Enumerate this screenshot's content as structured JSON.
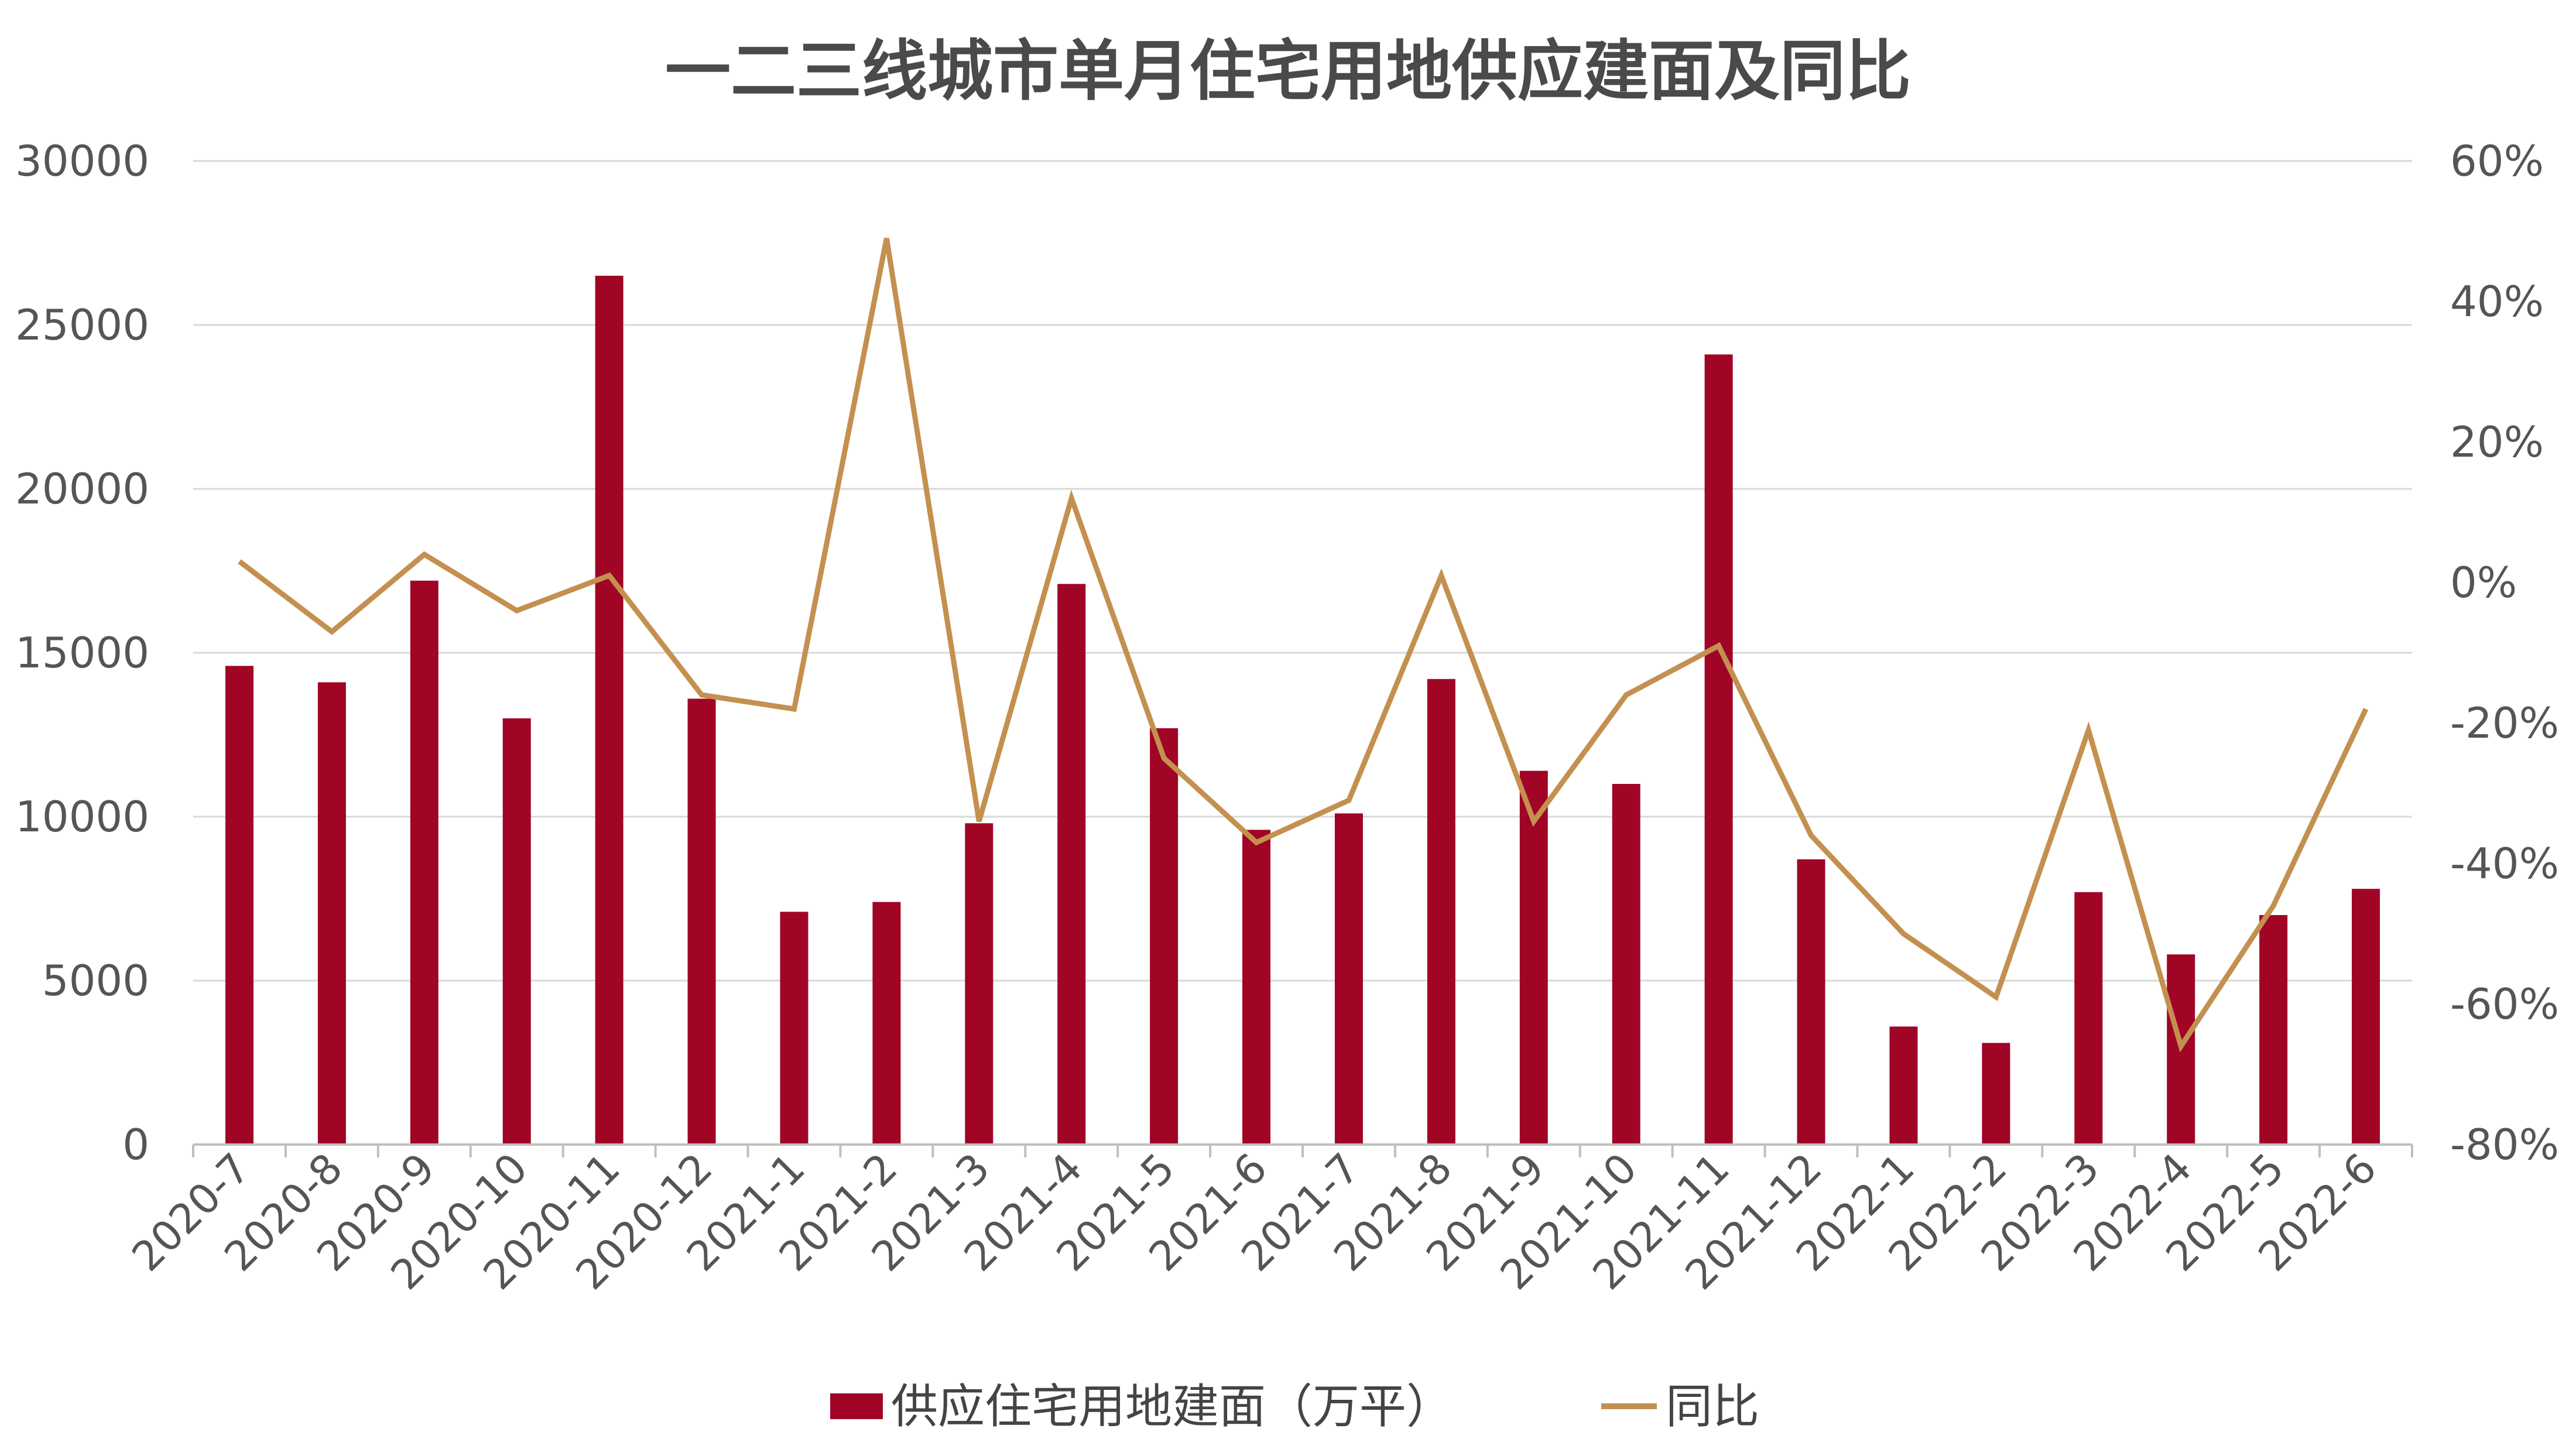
{
  "chart_data": {
    "type": "bar+line",
    "title": "一二三线城市单月住宅用地供应建面及同比",
    "categories": [
      "2020-7",
      "2020-8",
      "2020-9",
      "2020-10",
      "2020-11",
      "2020-12",
      "2021-1",
      "2021-2",
      "2021-3",
      "2021-4",
      "2021-5",
      "2021-6",
      "2021-7",
      "2021-8",
      "2021-9",
      "2021-10",
      "2021-11",
      "2021-12",
      "2022-1",
      "2022-2",
      "2022-3",
      "2022-4",
      "2022-5",
      "2022-6"
    ],
    "series": [
      {
        "name": "供应住宅用地建面（万平）",
        "type": "bar",
        "axis": "left",
        "color": "#a00526",
        "values": [
          14600,
          14100,
          17200,
          13000,
          26500,
          13600,
          7100,
          7400,
          9800,
          17100,
          12700,
          9600,
          10100,
          14200,
          11400,
          11000,
          24100,
          8700,
          3600,
          3100,
          7700,
          5800,
          7000,
          7800
        ]
      },
      {
        "name": "同比",
        "type": "line",
        "axis": "right",
        "color": "#c49050",
        "values": [
          3,
          -7,
          4,
          -4,
          1,
          -16,
          -18,
          49,
          -34,
          12,
          -25,
          -37,
          -31,
          1,
          -34,
          -16,
          -9,
          -36,
          -50,
          -59,
          -21,
          -66,
          -46,
          -18
        ]
      }
    ],
    "y_left": {
      "min": 0,
      "max": 30000,
      "ticks": [
        0,
        5000,
        10000,
        15000,
        20000,
        25000,
        30000
      ],
      "tick_labels": [
        "0",
        "5000",
        "10000",
        "15000",
        "20000",
        "25000",
        "30000"
      ]
    },
    "y_right": {
      "min": -80,
      "max": 60,
      "ticks": [
        -80,
        -60,
        -40,
        -20,
        0,
        20,
        40,
        60
      ],
      "tick_labels": [
        "-80%",
        "-60%",
        "-40%",
        "-20%",
        "0%",
        "20%",
        "40%",
        "60%"
      ]
    },
    "grid": true,
    "legend": "bottom-center"
  }
}
